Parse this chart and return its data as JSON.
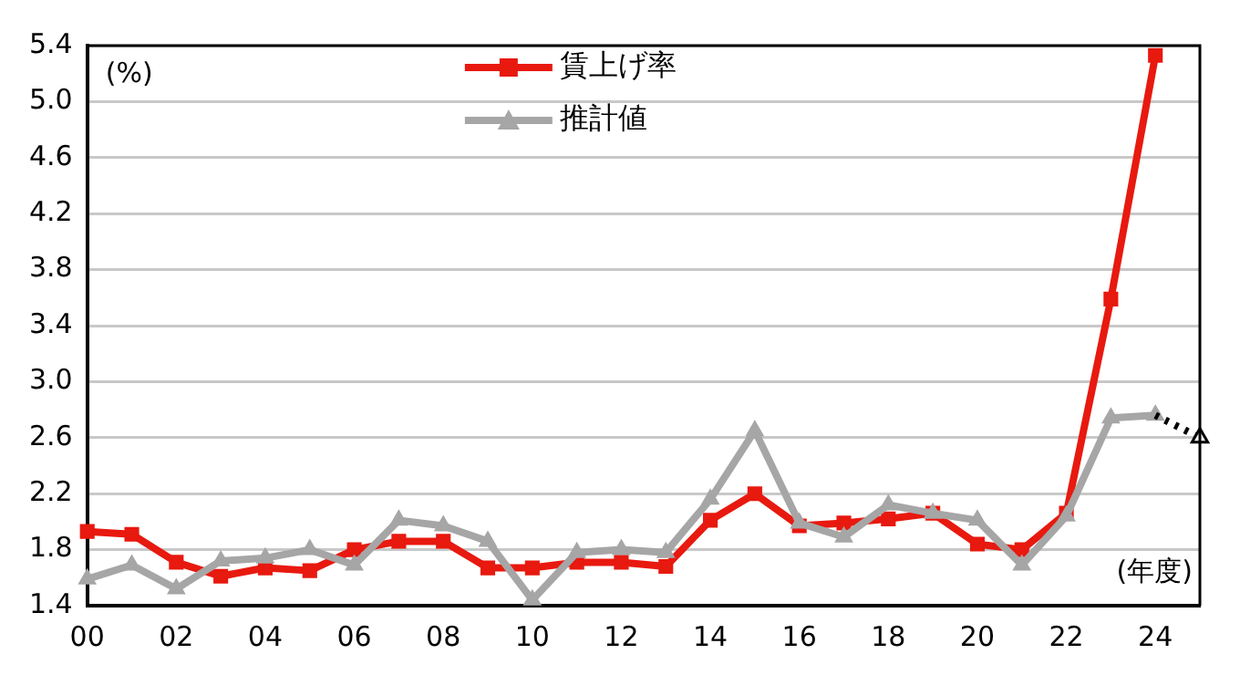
{
  "chart_data": {
    "type": "line",
    "categories": [
      "00",
      null,
      "02",
      null,
      "04",
      null,
      "06",
      null,
      "08",
      null,
      "10",
      null,
      "12",
      null,
      "14",
      null,
      "16",
      null,
      "18",
      null,
      "20",
      null,
      "22",
      null,
      "24",
      null
    ],
    "series": [
      {
        "name": "賃上げ率",
        "color": "#e8190f",
        "marker": "square",
        "values": [
          1.93,
          1.91,
          1.71,
          1.61,
          1.67,
          1.65,
          1.8,
          1.86,
          1.86,
          1.67,
          1.67,
          1.71,
          1.71,
          1.68,
          2.01,
          2.2,
          1.97,
          1.99,
          2.02,
          2.06,
          1.84,
          1.8,
          2.06,
          3.59,
          5.33,
          null
        ]
      },
      {
        "name": "推計値",
        "color": "#a6a6a6",
        "marker": "triangle",
        "values": [
          1.59,
          1.69,
          1.52,
          1.72,
          1.74,
          1.8,
          1.69,
          2.01,
          1.97,
          1.86,
          1.44,
          1.78,
          1.8,
          1.78,
          2.16,
          2.65,
          1.99,
          1.89,
          2.12,
          2.06,
          2.01,
          1.69,
          2.04,
          2.74,
          2.76,
          null
        ]
      },
      {
        "color": "#000000",
        "marker": "triangle",
        "line_style": "dotted",
        "values": [
          null,
          null,
          null,
          null,
          null,
          null,
          null,
          null,
          null,
          null,
          null,
          null,
          null,
          null,
          null,
          null,
          null,
          null,
          null,
          null,
          null,
          null,
          null,
          null,
          2.76,
          2.6
        ]
      }
    ],
    "ylim": [
      1.4,
      5.4
    ],
    "yticks": [
      1.4,
      1.8,
      2.2,
      2.6,
      {
        "value": 3.0,
        "label": "3.0"
      },
      3.4,
      3.8,
      4.2,
      4.6,
      {
        "value": 5.0,
        "label": "5.0"
      },
      5.4
    ],
    "grid": "y",
    "legend": "top",
    "annotations": [
      "(%)",
      "(年度)"
    ]
  }
}
